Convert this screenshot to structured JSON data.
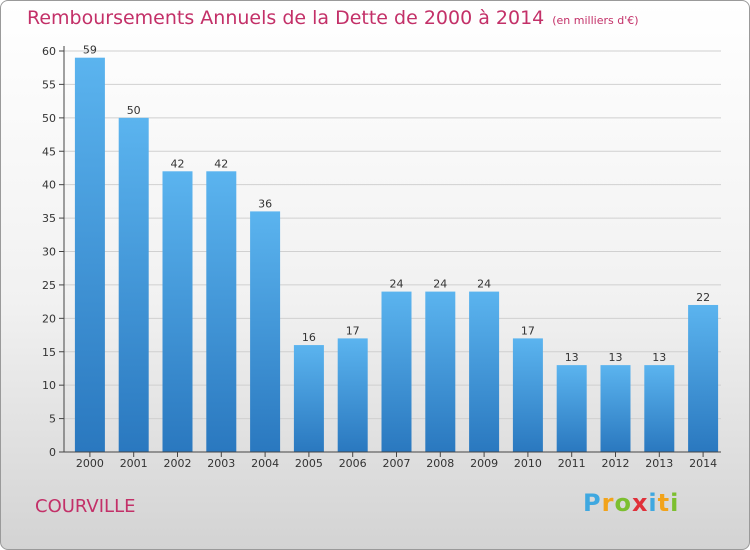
{
  "title": "Remboursements Annuels de la Dette de 2000 à 2014",
  "unit": "(en milliers d'€)",
  "city": "COURVILLE",
  "logo": {
    "letters": [
      "P",
      "r",
      "o",
      "x",
      "i",
      "t",
      "i"
    ],
    "colors": [
      "#3fa8e0",
      "#f2a31a",
      "#7cbf2f",
      "#e0303a",
      "#3fa8e0",
      "#f2a31a",
      "#7cbf2f"
    ]
  },
  "colors": {
    "accent": "#c33068",
    "bar": "#3d9ad9"
  },
  "chart_data": {
    "type": "bar",
    "categories": [
      "2000",
      "2001",
      "2002",
      "2003",
      "2004",
      "2005",
      "2006",
      "2007",
      "2008",
      "2009",
      "2010",
      "2011",
      "2012",
      "2013",
      "2014"
    ],
    "values": [
      59,
      50,
      42,
      42,
      36,
      16,
      17,
      24,
      24,
      24,
      17,
      13,
      13,
      13,
      22
    ],
    "title": "Remboursements Annuels de la Dette de 2000 à 2014",
    "ylim": [
      0,
      60
    ],
    "yticks": [
      0,
      5,
      10,
      15,
      20,
      25,
      30,
      35,
      40,
      45,
      50,
      55,
      60
    ],
    "grid": true
  }
}
